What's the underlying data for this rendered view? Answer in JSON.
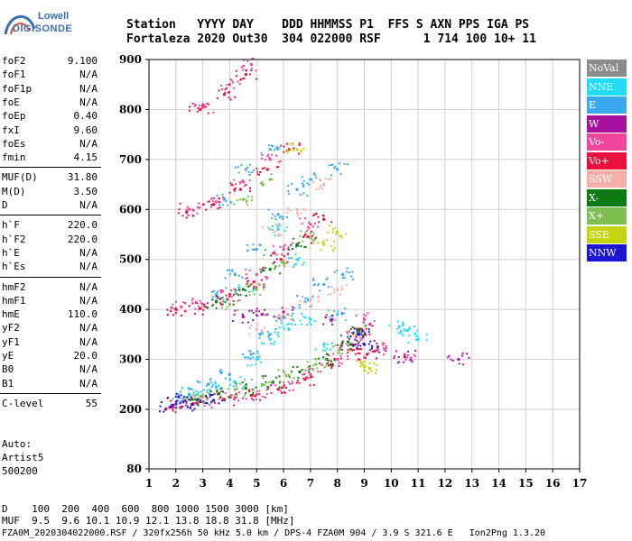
{
  "logo": {
    "line1": "Lowell",
    "line2": "DIGISONDE"
  },
  "header": {
    "labels": "Station   YYYY DAY    DDD HHMMSS P1  FFS S AXN PPS IGA PS",
    "values": "Fortaleza 2020 Out30  304 022000 RSF      1 714 100 10+ 11"
  },
  "params": {
    "group1": [
      {
        "k": "foF2",
        "v": "9.100"
      },
      {
        "k": "foF1",
        "v": "N/A"
      },
      {
        "k": "foF1p",
        "v": "N/A"
      },
      {
        "k": "foE",
        "v": "N/A"
      },
      {
        "k": "foEp",
        "v": "0.40"
      },
      {
        "k": "fxI",
        "v": "9.60"
      },
      {
        "k": "foEs",
        "v": "N/A"
      },
      {
        "k": "fmin",
        "v": "4.15"
      }
    ],
    "group2": [
      {
        "k": "MUF(D)",
        "v": "31.80"
      },
      {
        "k": "M(D)",
        "v": "3.50"
      },
      {
        "k": "D",
        "v": "N/A"
      }
    ],
    "group3": [
      {
        "k": "h`F",
        "v": "220.0"
      },
      {
        "k": "h`F2",
        "v": "220.0"
      },
      {
        "k": "h`E",
        "v": "N/A"
      },
      {
        "k": "h`Es",
        "v": "N/A"
      }
    ],
    "group4": [
      {
        "k": "hmF2",
        "v": "N/A"
      },
      {
        "k": "hmF1",
        "v": "N/A"
      },
      {
        "k": "hmE",
        "v": "110.0"
      },
      {
        "k": "yF2",
        "v": "N/A"
      },
      {
        "k": "yF1",
        "v": "N/A"
      },
      {
        "k": "yE",
        "v": "20.0"
      },
      {
        "k": "B0",
        "v": "N/A"
      },
      {
        "k": "B1",
        "v": "N/A"
      }
    ],
    "group5": [
      {
        "k": "C-level",
        "v": "55"
      }
    ]
  },
  "auto": {
    "line1": "Auto:",
    "line2": "Artist5",
    "line3": "500200"
  },
  "legend": [
    {
      "label": "NoVal",
      "color": "#8c8c8c"
    },
    {
      "label": "NNE",
      "color": "#22dcf5"
    },
    {
      "label": "E",
      "color": "#3aa9f0"
    },
    {
      "label": "W",
      "color": "#a8129e"
    },
    {
      "label": "Vo-",
      "color": "#f2469e"
    },
    {
      "label": "Vo+",
      "color": "#ec1040"
    },
    {
      "label": "SSW",
      "color": "#f2b0a8"
    },
    {
      "label": "X-",
      "color": "#0e7a14"
    },
    {
      "label": "X+",
      "color": "#7fbf52"
    },
    {
      "label": "SSE",
      "color": "#c4d412"
    },
    {
      "label": "NNW",
      "color": "#1a16d2"
    }
  ],
  "bottom": {
    "d_row": "D    100  200  400  600  800 1000 1500 3000 [km]",
    "muf_row": "MUF  9.5  9.6 10.1 10.9 12.1 13.8 18.8 31.8 [MHz]"
  },
  "footer": "FZA0M_2020304022000.RSF / 320fx256h 50 kHz 5.0 km / DPS-4 FZA0M 904 / 3.9 S 321.6 E   Ion2Png 1.3.20",
  "chart_data": {
    "type": "scatter",
    "title": "",
    "xlabel": "",
    "ylabel": "",
    "xlim": [
      1,
      17
    ],
    "ylim": [
      80,
      900
    ],
    "x_ticks": [
      1,
      2,
      3,
      4,
      5,
      6,
      7,
      8,
      9,
      10,
      11,
      12,
      13,
      14,
      15,
      16,
      17
    ],
    "y_ticks": [
      80,
      200,
      300,
      400,
      500,
      600,
      700,
      800,
      900
    ],
    "grid": true,
    "series": [
      {
        "name": "NNE",
        "color": "#22dcf5",
        "points": [
          [
            2.2,
            215
          ],
          [
            2.8,
            230
          ],
          [
            3.5,
            245
          ],
          [
            4.2,
            255
          ],
          [
            5.0,
            300
          ],
          [
            5.5,
            340
          ],
          [
            6.2,
            360
          ],
          [
            7.0,
            380
          ],
          [
            7.5,
            330
          ],
          [
            10.3,
            365
          ],
          [
            10.6,
            358
          ],
          [
            11.0,
            340
          ],
          [
            8.0,
            390
          ],
          [
            4.5,
            440
          ],
          [
            6.5,
            500
          ],
          [
            5.8,
            560
          ]
        ]
      },
      {
        "name": "E",
        "color": "#3aa9f0",
        "points": [
          [
            2.5,
            230
          ],
          [
            3.2,
            250
          ],
          [
            4.0,
            270
          ],
          [
            4.8,
            310
          ],
          [
            5.5,
            350
          ],
          [
            6.0,
            385
          ],
          [
            6.8,
            415
          ],
          [
            7.5,
            450
          ],
          [
            8.2,
            470
          ],
          [
            3.5,
            430
          ],
          [
            4.2,
            470
          ],
          [
            5.0,
            520
          ],
          [
            5.8,
            590
          ],
          [
            6.5,
            640
          ],
          [
            7.0,
            660
          ],
          [
            8.0,
            680
          ],
          [
            3.8,
            620
          ],
          [
            4.6,
            680
          ],
          [
            5.5,
            720
          ]
        ]
      },
      {
        "name": "W",
        "color": "#a8129e",
        "points": [
          [
            4.5,
            385
          ],
          [
            5.2,
            390
          ],
          [
            6.0,
            395
          ],
          [
            7.8,
            380
          ],
          [
            8.5,
            330
          ],
          [
            9.5,
            325
          ],
          [
            10.5,
            305
          ],
          [
            12.5,
            300
          ]
        ]
      },
      {
        "name": "Vo-",
        "color": "#f2469e",
        "points": [
          [
            2.0,
            210
          ],
          [
            3.0,
            215
          ],
          [
            4.0,
            225
          ],
          [
            5.0,
            230
          ],
          [
            6.0,
            245
          ],
          [
            7.0,
            270
          ],
          [
            8.0,
            300
          ],
          [
            8.7,
            345
          ],
          [
            9.0,
            380
          ],
          [
            9.5,
            320
          ],
          [
            10.5,
            310
          ],
          [
            2.2,
            405
          ],
          [
            3.0,
            410
          ],
          [
            4.0,
            430
          ],
          [
            5.0,
            470
          ],
          [
            6.0,
            520
          ],
          [
            7.0,
            570
          ],
          [
            2.5,
            600
          ],
          [
            3.5,
            615
          ],
          [
            4.5,
            655
          ],
          [
            5.5,
            700
          ],
          [
            3.0,
            805
          ],
          [
            4.0,
            850
          ],
          [
            4.8,
            890
          ]
        ]
      },
      {
        "name": "Vo+",
        "color": "#ec1040",
        "points": [
          [
            1.9,
            205
          ],
          [
            2.8,
            212
          ],
          [
            3.8,
            220
          ],
          [
            4.8,
            228
          ],
          [
            5.8,
            240
          ],
          [
            6.8,
            260
          ],
          [
            7.8,
            290
          ],
          [
            8.5,
            320
          ],
          [
            8.9,
            360
          ],
          [
            9.1,
            310
          ],
          [
            2.0,
            400
          ],
          [
            2.9,
            402
          ],
          [
            3.9,
            420
          ],
          [
            4.9,
            455
          ],
          [
            5.9,
            500
          ],
          [
            6.9,
            545
          ],
          [
            7.5,
            580
          ],
          [
            2.4,
            595
          ],
          [
            3.4,
            610
          ],
          [
            4.4,
            640
          ],
          [
            5.4,
            680
          ],
          [
            6.2,
            720
          ],
          [
            2.9,
            800
          ],
          [
            3.8,
            830
          ],
          [
            4.6,
            870
          ]
        ]
      },
      {
        "name": "X-",
        "color": "#0e7a14",
        "points": [
          [
            2.6,
            220
          ],
          [
            3.6,
            232
          ],
          [
            4.6,
            242
          ],
          [
            5.6,
            255
          ],
          [
            6.6,
            275
          ],
          [
            7.6,
            300
          ],
          [
            8.4,
            335
          ],
          [
            8.8,
            360
          ],
          [
            3.5,
            415
          ],
          [
            4.5,
            440
          ],
          [
            5.5,
            480
          ],
          [
            6.5,
            530
          ]
        ]
      },
      {
        "name": "X+",
        "color": "#7fbf52",
        "points": [
          [
            3.0,
            225
          ],
          [
            4.2,
            240
          ],
          [
            5.2,
            250
          ],
          [
            6.2,
            268
          ],
          [
            7.2,
            290
          ],
          [
            8.1,
            320
          ],
          [
            4.0,
            410
          ],
          [
            5.0,
            440
          ],
          [
            6.0,
            495
          ],
          [
            7.0,
            545
          ],
          [
            4.5,
            620
          ],
          [
            5.5,
            660
          ]
        ]
      },
      {
        "name": "SSE",
        "color": "#c4d412",
        "points": [
          [
            9.0,
            285
          ],
          [
            9.2,
            282
          ],
          [
            7.5,
            530
          ],
          [
            8.0,
            555
          ],
          [
            6.5,
            720
          ]
        ]
      },
      {
        "name": "NNW",
        "color": "#1a16d2",
        "points": [
          [
            1.8,
            205
          ],
          [
            2.1,
            225
          ],
          [
            2.6,
            210
          ],
          [
            3.4,
            218
          ],
          [
            8.8,
            350
          ],
          [
            9.0,
            330
          ]
        ]
      },
      {
        "name": "SSW",
        "color": "#f2b0a8",
        "points": [
          [
            5.0,
            360
          ],
          [
            6.0,
            390
          ],
          [
            7.0,
            420
          ],
          [
            8.0,
            440
          ],
          [
            5.5,
            560
          ],
          [
            6.5,
            600
          ],
          [
            7.5,
            650
          ]
        ]
      }
    ]
  }
}
